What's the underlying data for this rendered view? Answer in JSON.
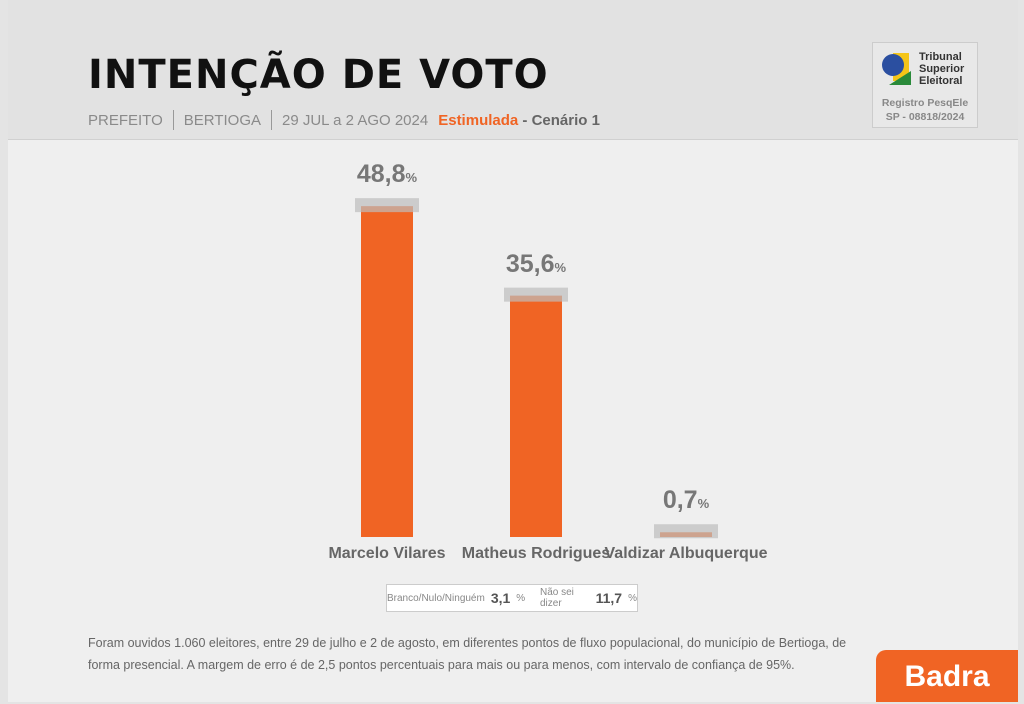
{
  "header": {
    "title": "INTENÇÃO DE VOTO",
    "office": "PREFEITO",
    "city": "BERTIOGA",
    "dates": "29 JUL a 2 AGO 2024",
    "type": "Estimulada",
    "scenario": "- Cenário 1"
  },
  "tse": {
    "name_line1": "Tribunal",
    "name_line2": "Superior",
    "name_line3": "Eleitoral",
    "registro": "Registro PesqEle",
    "numero": "SP -  08818/2024"
  },
  "chart_data": {
    "type": "bar",
    "title": "INTENÇÃO DE VOTO",
    "categories": [
      "Marcelo Vilares",
      "Matheus Rodrigues",
      "Valdizar Albuquerque"
    ],
    "values": [
      48.8,
      35.6,
      0.7
    ],
    "labels": [
      "48,8",
      "35,6",
      "0,7"
    ],
    "unit": "%",
    "ylim": [
      0,
      50
    ],
    "color": "#f06424"
  },
  "others": {
    "blank_label": "Branco/Nulo/Ninguém",
    "blank_value": "3,1",
    "undecided_label": "Não sei dizer",
    "undecided_value": "11,7",
    "unit": "%"
  },
  "note": "Foram ouvidos 1.060 eleitores, entre 29 de julho e 2 de agosto, em diferentes pontos de fluxo populacional, do município de Bertioga, de forma presencial. A margem de erro é de 2,5 pontos percentuais para mais ou para menos, com intervalo de confiança de 95%.",
  "brand": "Badra"
}
